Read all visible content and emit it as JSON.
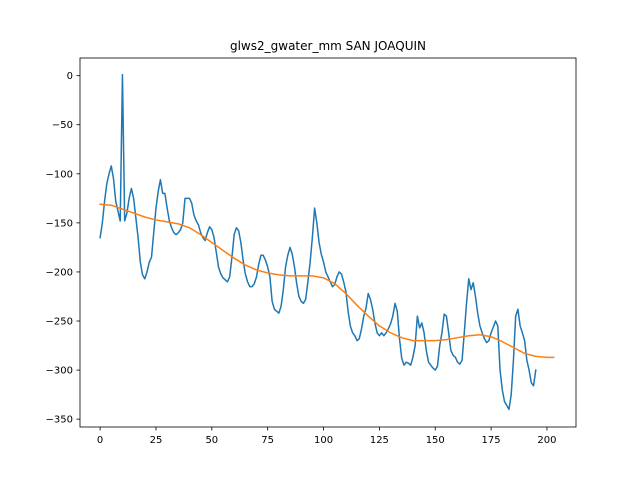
{
  "chart_data": {
    "type": "line",
    "title": "glws2_gwater_mm SAN JOAQUIN",
    "xlabel": "",
    "ylabel": "",
    "xlim": [
      -9,
      213
    ],
    "ylim": [
      -358,
      18
    ],
    "xticks": [
      0,
      25,
      50,
      75,
      100,
      125,
      150,
      175,
      200
    ],
    "yticks": [
      0,
      -50,
      -100,
      -150,
      -200,
      -250,
      -300,
      -350
    ],
    "grid": false,
    "colors": {
      "raw": "#1f77b4",
      "trend": "#ff7f0e"
    },
    "series": [
      {
        "key": "raw",
        "points": [
          [
            0,
            -165
          ],
          [
            1,
            -150
          ],
          [
            2,
            -128
          ],
          [
            3,
            -110
          ],
          [
            4,
            -100
          ],
          [
            5,
            -92
          ],
          [
            6,
            -105
          ],
          [
            7,
            -128
          ],
          [
            8,
            -138
          ],
          [
            9,
            -148
          ],
          [
            10,
            1
          ],
          [
            11,
            -148
          ],
          [
            12,
            -140
          ],
          [
            13,
            -125
          ],
          [
            14,
            -115
          ],
          [
            15,
            -125
          ],
          [
            16,
            -145
          ],
          [
            17,
            -165
          ],
          [
            18,
            -190
          ],
          [
            19,
            -203
          ],
          [
            20,
            -207
          ],
          [
            21,
            -200
          ],
          [
            22,
            -190
          ],
          [
            23,
            -185
          ],
          [
            24,
            -160
          ],
          [
            25,
            -135
          ],
          [
            26,
            -118
          ],
          [
            27,
            -106
          ],
          [
            28,
            -120
          ],
          [
            29,
            -120
          ],
          [
            30,
            -135
          ],
          [
            31,
            -148
          ],
          [
            32,
            -155
          ],
          [
            33,
            -160
          ],
          [
            34,
            -162
          ],
          [
            35,
            -160
          ],
          [
            36,
            -157
          ],
          [
            37,
            -150
          ],
          [
            38,
            -125
          ],
          [
            39,
            -125
          ],
          [
            40,
            -125
          ],
          [
            41,
            -130
          ],
          [
            42,
            -142
          ],
          [
            43,
            -148
          ],
          [
            44,
            -152
          ],
          [
            45,
            -160
          ],
          [
            46,
            -165
          ],
          [
            47,
            -168
          ],
          [
            48,
            -160
          ],
          [
            49,
            -154
          ],
          [
            50,
            -157
          ],
          [
            51,
            -165
          ],
          [
            52,
            -180
          ],
          [
            53,
            -195
          ],
          [
            54,
            -202
          ],
          [
            55,
            -206
          ],
          [
            56,
            -208
          ],
          [
            57,
            -210
          ],
          [
            58,
            -205
          ],
          [
            59,
            -185
          ],
          [
            60,
            -162
          ],
          [
            61,
            -155
          ],
          [
            62,
            -158
          ],
          [
            63,
            -170
          ],
          [
            64,
            -188
          ],
          [
            65,
            -202
          ],
          [
            66,
            -210
          ],
          [
            67,
            -215
          ],
          [
            68,
            -215
          ],
          [
            69,
            -212
          ],
          [
            70,
            -205
          ],
          [
            71,
            -192
          ],
          [
            72,
            -183
          ],
          [
            73,
            -183
          ],
          [
            74,
            -188
          ],
          [
            75,
            -195
          ],
          [
            76,
            -205
          ],
          [
            77,
            -230
          ],
          [
            78,
            -238
          ],
          [
            79,
            -240
          ],
          [
            80,
            -242
          ],
          [
            81,
            -235
          ],
          [
            82,
            -218
          ],
          [
            83,
            -195
          ],
          [
            84,
            -183
          ],
          [
            85,
            -175
          ],
          [
            86,
            -182
          ],
          [
            87,
            -195
          ],
          [
            88,
            -212
          ],
          [
            89,
            -225
          ],
          [
            90,
            -230
          ],
          [
            91,
            -232
          ],
          [
            92,
            -228
          ],
          [
            93,
            -210
          ],
          [
            94,
            -190
          ],
          [
            95,
            -165
          ],
          [
            96,
            -135
          ],
          [
            97,
            -150
          ],
          [
            98,
            -170
          ],
          [
            99,
            -182
          ],
          [
            100,
            -190
          ],
          [
            101,
            -200
          ],
          [
            102,
            -205
          ],
          [
            103,
            -210
          ],
          [
            104,
            -215
          ],
          [
            105,
            -213
          ],
          [
            106,
            -205
          ],
          [
            107,
            -200
          ],
          [
            108,
            -202
          ],
          [
            109,
            -210
          ],
          [
            110,
            -220
          ],
          [
            111,
            -240
          ],
          [
            112,
            -255
          ],
          [
            113,
            -262
          ],
          [
            114,
            -265
          ],
          [
            115,
            -270
          ],
          [
            116,
            -268
          ],
          [
            117,
            -258
          ],
          [
            118,
            -245
          ],
          [
            119,
            -237
          ],
          [
            120,
            -222
          ],
          [
            121,
            -228
          ],
          [
            122,
            -238
          ],
          [
            123,
            -252
          ],
          [
            124,
            -262
          ],
          [
            125,
            -265
          ],
          [
            126,
            -262
          ],
          [
            127,
            -265
          ],
          [
            128,
            -262
          ],
          [
            129,
            -258
          ],
          [
            130,
            -253
          ],
          [
            131,
            -245
          ],
          [
            132,
            -232
          ],
          [
            133,
            -240
          ],
          [
            134,
            -268
          ],
          [
            135,
            -288
          ],
          [
            136,
            -295
          ],
          [
            137,
            -292
          ],
          [
            138,
            -293
          ],
          [
            139,
            -295
          ],
          [
            140,
            -287
          ],
          [
            141,
            -275
          ],
          [
            142,
            -245
          ],
          [
            143,
            -257
          ],
          [
            144,
            -252
          ],
          [
            145,
            -262
          ],
          [
            146,
            -280
          ],
          [
            147,
            -292
          ],
          [
            148,
            -295
          ],
          [
            149,
            -298
          ],
          [
            150,
            -300
          ],
          [
            151,
            -296
          ],
          [
            152,
            -275
          ],
          [
            153,
            -262
          ],
          [
            154,
            -243
          ],
          [
            155,
            -245
          ],
          [
            156,
            -262
          ],
          [
            157,
            -280
          ],
          [
            158,
            -285
          ],
          [
            159,
            -287
          ],
          [
            160,
            -292
          ],
          [
            161,
            -294
          ],
          [
            162,
            -290
          ],
          [
            163,
            -262
          ],
          [
            164,
            -232
          ],
          [
            165,
            -207
          ],
          [
            166,
            -218
          ],
          [
            167,
            -211
          ],
          [
            168,
            -225
          ],
          [
            169,
            -242
          ],
          [
            170,
            -255
          ],
          [
            171,
            -262
          ],
          [
            172,
            -268
          ],
          [
            173,
            -272
          ],
          [
            174,
            -270
          ],
          [
            175,
            -262
          ],
          [
            176,
            -256
          ],
          [
            177,
            -250
          ],
          [
            178,
            -255
          ],
          [
            179,
            -300
          ],
          [
            180,
            -320
          ],
          [
            181,
            -332
          ],
          [
            182,
            -336
          ],
          [
            183,
            -340
          ],
          [
            184,
            -325
          ],
          [
            185,
            -290
          ],
          [
            186,
            -245
          ],
          [
            187,
            -238
          ],
          [
            188,
            -255
          ],
          [
            189,
            -262
          ],
          [
            190,
            -270
          ],
          [
            191,
            -290
          ],
          [
            192,
            -300
          ],
          [
            193,
            -313
          ],
          [
            194,
            -316
          ],
          [
            195,
            -300
          ]
        ]
      },
      {
        "key": "trend",
        "points": [
          [
            0,
            -131
          ],
          [
            5,
            -132
          ],
          [
            10,
            -136
          ],
          [
            15,
            -140
          ],
          [
            20,
            -144
          ],
          [
            25,
            -147
          ],
          [
            30,
            -149
          ],
          [
            35,
            -151
          ],
          [
            40,
            -155
          ],
          [
            45,
            -162
          ],
          [
            50,
            -170
          ],
          [
            55,
            -178
          ],
          [
            60,
            -186
          ],
          [
            65,
            -193
          ],
          [
            70,
            -198
          ],
          [
            75,
            -201
          ],
          [
            80,
            -203
          ],
          [
            85,
            -204
          ],
          [
            90,
            -204
          ],
          [
            95,
            -204
          ],
          [
            100,
            -206
          ],
          [
            105,
            -212
          ],
          [
            110,
            -222
          ],
          [
            115,
            -234
          ],
          [
            120,
            -245
          ],
          [
            125,
            -255
          ],
          [
            130,
            -262
          ],
          [
            135,
            -267
          ],
          [
            140,
            -270
          ],
          [
            145,
            -270
          ],
          [
            150,
            -270
          ],
          [
            155,
            -269
          ],
          [
            160,
            -267
          ],
          [
            165,
            -265
          ],
          [
            170,
            -264
          ],
          [
            175,
            -266
          ],
          [
            180,
            -271
          ],
          [
            185,
            -277
          ],
          [
            190,
            -283
          ],
          [
            195,
            -286
          ],
          [
            200,
            -287
          ],
          [
            203,
            -287
          ]
        ]
      }
    ]
  }
}
